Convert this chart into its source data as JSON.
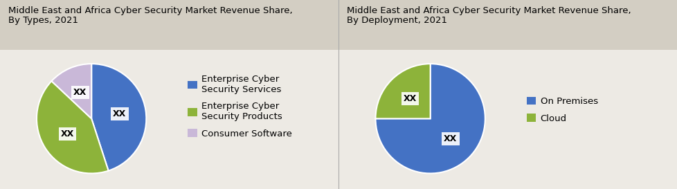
{
  "chart1": {
    "title_line1": "Middle East and Africa Cyber Security Market Revenue Share,",
    "title_line2": "By Types, 2021",
    "slices": [
      45,
      42,
      13
    ],
    "labels": [
      "XX",
      "XX",
      "XX"
    ],
    "colors": [
      "#4472C4",
      "#8DB33A",
      "#C9B8D8"
    ],
    "legend_labels": [
      "Enterprise Cyber\nSecurity Services",
      "Enterprise Cyber\nSecurity Products",
      "Consumer Software"
    ],
    "startangle": 90
  },
  "chart2": {
    "title_line1": "Middle East and Africa Cyber Security Market Revenue Share,",
    "title_line2": "By Deployment, 2021",
    "slices": [
      75,
      25
    ],
    "labels": [
      "XX",
      "XX"
    ],
    "colors": [
      "#4472C4",
      "#8DB33A"
    ],
    "legend_labels": [
      "On Premises",
      "Cloud"
    ],
    "startangle": 90
  },
  "title_bg_color": "#D3CEC3",
  "bg_color": "#EDEAE4",
  "title_fontsize": 9.5,
  "legend_fontsize": 9.5,
  "label_fontsize": 9
}
